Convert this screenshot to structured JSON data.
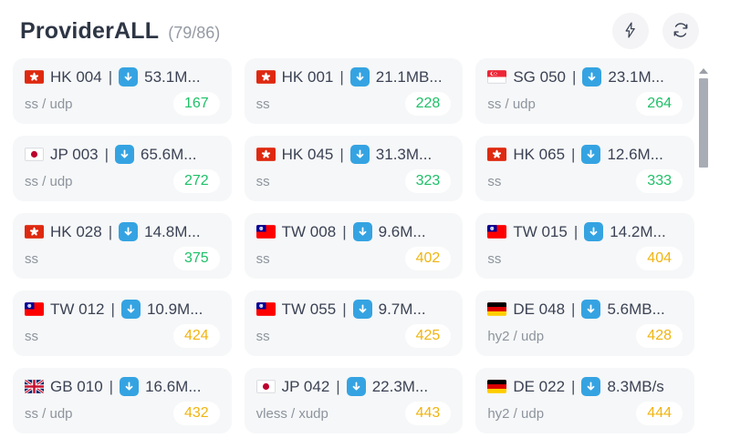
{
  "header": {
    "title": "ProviderALL",
    "count": "(79/86)",
    "actions": [
      {
        "label": "speed-test",
        "icon": "lightning-icon"
      },
      {
        "label": "refresh",
        "icon": "refresh-icon"
      }
    ]
  },
  "colors": {
    "green": "#1ec068",
    "yellow": "#f0b411",
    "blue": "#35a3e2",
    "card_bg": "#f6f7f8",
    "title": "#2e3645",
    "muted": "#8d949e"
  },
  "nodes": [
    {
      "flag": "hk",
      "country": "Hong Kong",
      "name": "HK 004",
      "separator": "|",
      "download_icon": "download-icon",
      "speed": "53.1M...",
      "protocol": "ss / udp",
      "latency": "167",
      "latency_color": "green"
    },
    {
      "flag": "hk",
      "country": "Hong Kong",
      "name": "HK 001",
      "separator": "|",
      "download_icon": "download-icon",
      "speed": "21.1MB...",
      "protocol": "ss",
      "latency": "228",
      "latency_color": "green"
    },
    {
      "flag": "sg",
      "country": "Singapore",
      "name": "SG 050",
      "separator": "|",
      "download_icon": "download-icon",
      "speed": "23.1M...",
      "protocol": "ss / udp",
      "latency": "264",
      "latency_color": "green"
    },
    {
      "flag": "jp",
      "country": "Japan",
      "name": "JP 003",
      "separator": "|",
      "download_icon": "download-icon",
      "speed": "65.6M...",
      "protocol": "ss / udp",
      "latency": "272",
      "latency_color": "green"
    },
    {
      "flag": "hk",
      "country": "Hong Kong",
      "name": "HK 045",
      "separator": "|",
      "download_icon": "download-icon",
      "speed": "31.3M...",
      "protocol": "ss",
      "latency": "323",
      "latency_color": "green"
    },
    {
      "flag": "hk",
      "country": "Hong Kong",
      "name": "HK 065",
      "separator": "|",
      "download_icon": "download-icon",
      "speed": "12.6M...",
      "protocol": "ss",
      "latency": "333",
      "latency_color": "green"
    },
    {
      "flag": "hk",
      "country": "Hong Kong",
      "name": "HK 028",
      "separator": "|",
      "download_icon": "download-icon",
      "speed": "14.8M...",
      "protocol": "ss",
      "latency": "375",
      "latency_color": "green"
    },
    {
      "flag": "tw",
      "country": "Taiwan",
      "name": "TW 008",
      "separator": "|",
      "download_icon": "download-icon",
      "speed": "9.6M...",
      "protocol": "ss",
      "latency": "402",
      "latency_color": "yellow"
    },
    {
      "flag": "tw",
      "country": "Taiwan",
      "name": "TW 015",
      "separator": "|",
      "download_icon": "download-icon",
      "speed": "14.2M...",
      "protocol": "ss",
      "latency": "404",
      "latency_color": "yellow"
    },
    {
      "flag": "tw",
      "country": "Taiwan",
      "name": "TW 012",
      "separator": "|",
      "download_icon": "download-icon",
      "speed": "10.9M...",
      "protocol": "ss",
      "latency": "424",
      "latency_color": "yellow"
    },
    {
      "flag": "tw",
      "country": "Taiwan",
      "name": "TW 055",
      "separator": "|",
      "download_icon": "download-icon",
      "speed": "9.7M...",
      "protocol": "ss",
      "latency": "425",
      "latency_color": "yellow"
    },
    {
      "flag": "de",
      "country": "Germany",
      "name": "DE 048",
      "separator": "|",
      "download_icon": "download-icon",
      "speed": "5.6MB...",
      "protocol": "hy2 / udp",
      "latency": "428",
      "latency_color": "yellow"
    },
    {
      "flag": "gb",
      "country": "United Kingdom",
      "name": "GB 010",
      "separator": "|",
      "download_icon": "download-icon",
      "speed": "16.6M...",
      "protocol": "ss / udp",
      "latency": "432",
      "latency_color": "yellow"
    },
    {
      "flag": "jp",
      "country": "Japan",
      "name": "JP 042",
      "separator": "|",
      "download_icon": "download-icon",
      "speed": "22.3M...",
      "protocol": "vless / xudp",
      "latency": "443",
      "latency_color": "yellow"
    },
    {
      "flag": "de",
      "country": "Germany",
      "name": "DE 022",
      "separator": "|",
      "download_icon": "download-icon",
      "speed": "8.3MB/s",
      "protocol": "hy2 / udp",
      "latency": "444",
      "latency_color": "yellow"
    }
  ]
}
